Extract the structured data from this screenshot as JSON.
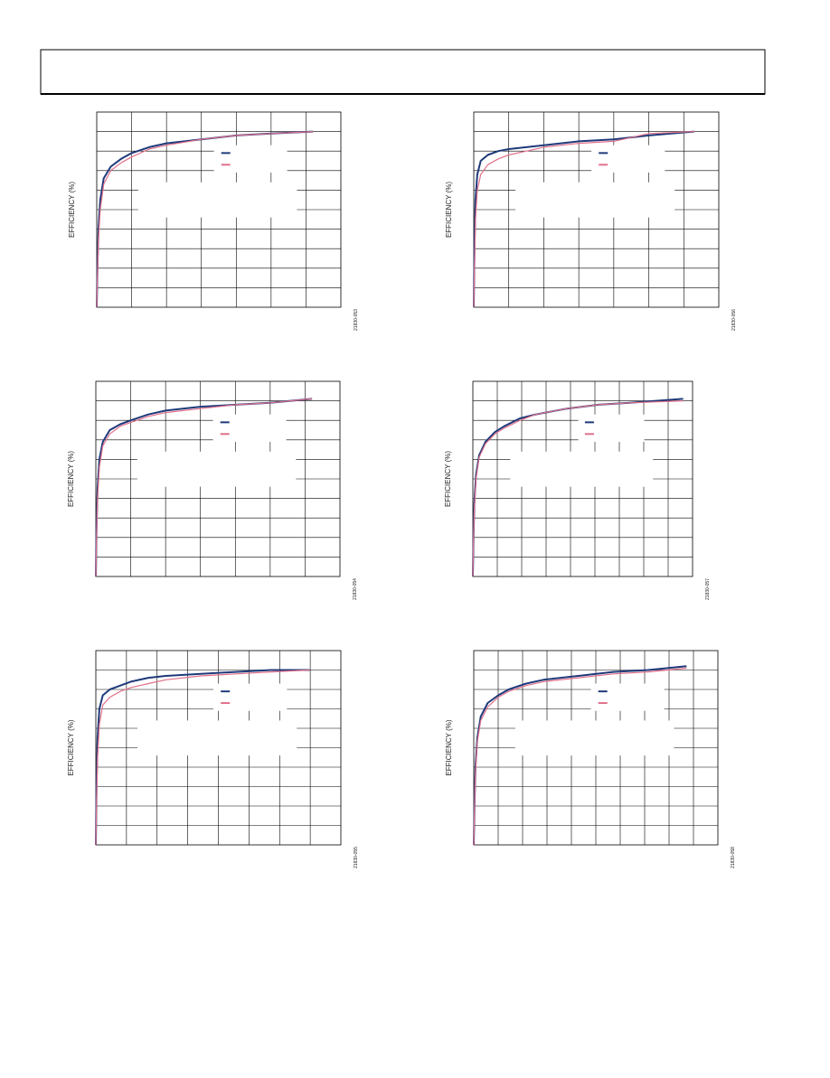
{
  "chart_data": [
    {
      "type": "line",
      "y_label": "EFFICIENCY (%)",
      "fig_id": "21830-053",
      "xlim": [
        0,
        7
      ],
      "ylim": [
        0,
        100
      ],
      "x": [
        0,
        0.02,
        0.05,
        0.1,
        0.2,
        0.4,
        0.7,
        1,
        1.5,
        2,
        3,
        4,
        5,
        6.2
      ],
      "series": [
        {
          "color": "#1f3a7a",
          "values": [
            0,
            20,
            40,
            55,
            66,
            72,
            76,
            79,
            82,
            84,
            86,
            88,
            89,
            90
          ]
        },
        {
          "color": "#e0708a",
          "values": [
            0,
            15,
            35,
            50,
            63,
            70,
            74,
            77,
            81,
            83,
            86,
            88,
            89,
            90
          ]
        }
      ]
    },
    {
      "type": "line",
      "y_label": "EFFICIENCY (%)",
      "fig_id": "21830-056",
      "xlim": [
        0,
        7
      ],
      "ylim": [
        0,
        100
      ],
      "x": [
        0,
        0.02,
        0.05,
        0.1,
        0.2,
        0.4,
        0.7,
        1,
        1.5,
        2,
        3,
        4,
        5,
        6.3
      ],
      "series": [
        {
          "color": "#1f3a7a",
          "values": [
            0,
            30,
            55,
            68,
            75,
            78,
            80,
            81,
            82,
            83,
            85,
            86,
            88,
            90
          ]
        },
        {
          "color": "#e0708a",
          "values": [
            0,
            20,
            45,
            60,
            68,
            73,
            76,
            78,
            80,
            82,
            84,
            85,
            89,
            90
          ]
        }
      ]
    },
    {
      "type": "line",
      "y_label": "EFFICIENCY (%)",
      "fig_id": "21830-054",
      "xlim": [
        0,
        7
      ],
      "ylim": [
        0,
        100
      ],
      "x": [
        0,
        0.02,
        0.05,
        0.1,
        0.2,
        0.4,
        0.7,
        1,
        1.5,
        2,
        3,
        4,
        5,
        6.2
      ],
      "series": [
        {
          "color": "#1f3a7a",
          "values": [
            0,
            25,
            45,
            60,
            69,
            75,
            78,
            80,
            83,
            85,
            87,
            88,
            89,
            91
          ]
        },
        {
          "color": "#e0708a",
          "values": [
            0,
            20,
            40,
            56,
            67,
            73,
            77,
            79,
            82,
            84,
            86,
            88,
            89,
            91
          ]
        }
      ]
    },
    {
      "type": "line",
      "y_label": "EFFICIENCY (%)",
      "fig_id": "21830-057",
      "xlim": [
        0,
        7
      ],
      "ylim": [
        0,
        100
      ],
      "x": [
        0,
        0.02,
        0.05,
        0.1,
        0.2,
        0.4,
        0.7,
        1,
        1.5,
        2,
        3,
        4,
        5,
        6.7
      ],
      "series": [
        {
          "color": "#1f3a7a",
          "values": [
            0,
            20,
            38,
            52,
            62,
            69,
            74,
            77,
            81,
            83,
            86,
            88,
            89,
            91
          ]
        },
        {
          "color": "#e0708a",
          "values": [
            0,
            18,
            35,
            50,
            61,
            68,
            73,
            76,
            80,
            83,
            86,
            88,
            89,
            90
          ]
        }
      ]
    },
    {
      "type": "line",
      "y_label": "EFFICIENCY (%)",
      "fig_id": "21830-055",
      "xlim": [
        0,
        7
      ],
      "ylim": [
        0,
        100
      ],
      "x": [
        0,
        0.02,
        0.05,
        0.1,
        0.2,
        0.4,
        0.7,
        1,
        1.5,
        2,
        3,
        4,
        5,
        6.1
      ],
      "series": [
        {
          "color": "#1f3a7a",
          "values": [
            0,
            30,
            55,
            70,
            77,
            80,
            82,
            84,
            86,
            87,
            88,
            89,
            90,
            90
          ]
        },
        {
          "color": "#e0708a",
          "values": [
            0,
            22,
            45,
            62,
            72,
            76,
            79,
            81,
            83,
            85,
            87,
            88,
            89,
            90
          ]
        }
      ]
    },
    {
      "type": "line",
      "y_label": "EFFICIENCY (%)",
      "fig_id": "21830-058",
      "xlim": [
        0,
        7
      ],
      "ylim": [
        0,
        100
      ],
      "x": [
        0,
        0.02,
        0.05,
        0.1,
        0.2,
        0.4,
        0.7,
        1,
        1.5,
        2,
        3,
        4,
        5,
        6.1
      ],
      "series": [
        {
          "color": "#1f3a7a",
          "values": [
            0,
            20,
            40,
            55,
            66,
            73,
            77,
            80,
            83,
            85,
            87,
            89,
            90,
            92
          ]
        },
        {
          "color": "#e0708a",
          "values": [
            0,
            18,
            37,
            53,
            64,
            71,
            76,
            79,
            82,
            84,
            86,
            88,
            89,
            91
          ]
        }
      ]
    }
  ]
}
